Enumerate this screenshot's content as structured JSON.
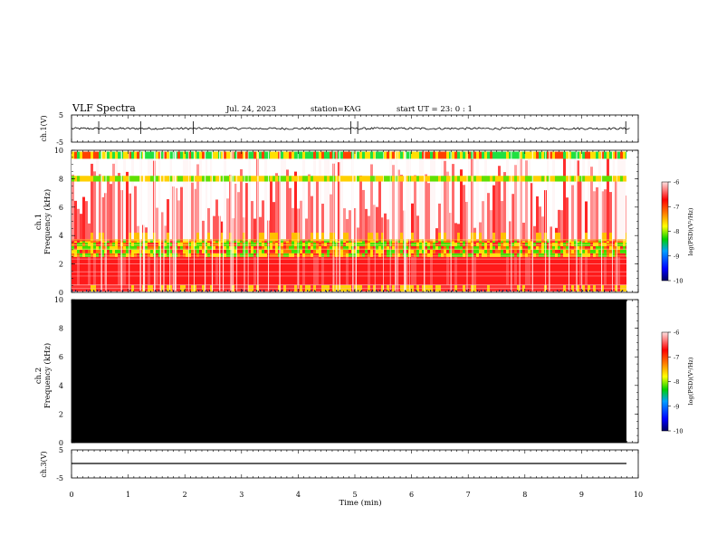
{
  "header": {
    "title": "VLF Spectra",
    "date": "Jul. 24, 2023",
    "station": "station=KAG",
    "start": "start UT = 23: 0 : 1"
  },
  "colorbar": {
    "label": "log(PSD)(V²/Hz)",
    "ticks": [
      "-6",
      "-7",
      "-8",
      "-9",
      "-10"
    ],
    "colors": [
      "#000080",
      "#0000ff",
      "#00c000",
      "#ffff00",
      "#ff8000",
      "#ff0000",
      "#ffffff"
    ]
  },
  "chart_data": [
    {
      "type": "line",
      "title": "ch.1 waveform",
      "ylabel": "ch.1(V)",
      "ylim": [
        -5,
        5
      ],
      "y_ticks": [
        "5",
        "-5"
      ],
      "x_range_min": [
        0,
        10
      ],
      "description_values": {
        "baseline": 0,
        "noise_amplitude": 0.4,
        "spike_times_min": [
          0.48,
          1.22,
          2.15,
          4.93,
          5.05,
          9.78
        ]
      }
    },
    {
      "type": "heatmap",
      "title": "ch.1 spectrogram",
      "ylabel": "ch.1 Frequency (kHz)",
      "ylim": [
        0,
        10
      ],
      "y_ticks": [
        "0",
        "2",
        "4",
        "6",
        "8",
        "10"
      ],
      "x_range_min": [
        0,
        9.85
      ],
      "log_psd_range": [
        -10,
        -6
      ],
      "bands_khz": [
        {
          "from": 0.0,
          "to": 0.5,
          "level": -7.5
        },
        {
          "from": 0.5,
          "to": 2.5,
          "level": -6.8
        },
        {
          "from": 2.5,
          "to": 3.5,
          "level": -7.9
        },
        {
          "from": 3.5,
          "to": 7.5,
          "level": -7.0
        },
        {
          "from": 7.8,
          "to": 8.3,
          "level": -8.1
        },
        {
          "from": 9.4,
          "to": 9.9,
          "level": -8.3
        }
      ]
    },
    {
      "type": "heatmap",
      "title": "ch.2 spectrogram",
      "ylabel": "ch.2 Frequency (kHz)",
      "ylim": [
        0,
        10
      ],
      "y_ticks": [
        "0",
        "2",
        "4",
        "6",
        "8",
        "10"
      ],
      "x_range_min": [
        0,
        9.85
      ],
      "fill": "no data (black)"
    },
    {
      "type": "line",
      "title": "ch.3 waveform",
      "ylabel": "ch.3(V)",
      "ylim": [
        -5,
        5
      ],
      "y_ticks": [
        "5",
        "-5"
      ],
      "x_range_min": [
        0,
        9.85
      ],
      "constant_value": -2.2
    }
  ],
  "x_axis": {
    "label": "Time (min)",
    "ticks": [
      "0",
      "1",
      "2",
      "3",
      "4",
      "5",
      "6",
      "7",
      "8",
      "9",
      "10"
    ],
    "range": [
      0,
      10
    ]
  }
}
